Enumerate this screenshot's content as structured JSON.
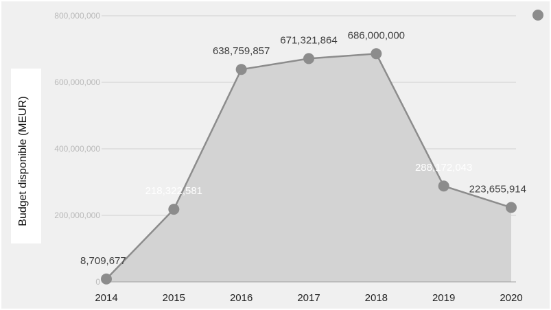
{
  "chart_data": {
    "type": "area",
    "ylabel": "Budget disponible (MEUR)",
    "categories": [
      "2014",
      "2015",
      "2016",
      "2017",
      "2018",
      "2019",
      "2020"
    ],
    "values": [
      8709677,
      218322581,
      638759857,
      671321864,
      686000000,
      288172043,
      223655914
    ],
    "data_labels": [
      "8,709,677",
      "218,322,581",
      "638,759,857",
      "671,321,864",
      "686,000,000",
      "288,172,043",
      "223,655,914"
    ],
    "yticks": [
      0,
      200000000,
      400000000,
      600000000,
      800000000
    ],
    "ytick_labels": [
      "0",
      "200,000,000",
      "400,000,000",
      "600,000,000",
      "800,000,000"
    ],
    "ylim": [
      0,
      800000000
    ],
    "grid": true,
    "legend": "top-right",
    "colors": {
      "line": "#8c8c8c",
      "fill": "#d3d3d3",
      "marker": "#8c8c8c",
      "plot_background": "#f0f0f0",
      "gridline": "#cfcfcf",
      "legend_marker": "#8c8c8c"
    }
  }
}
